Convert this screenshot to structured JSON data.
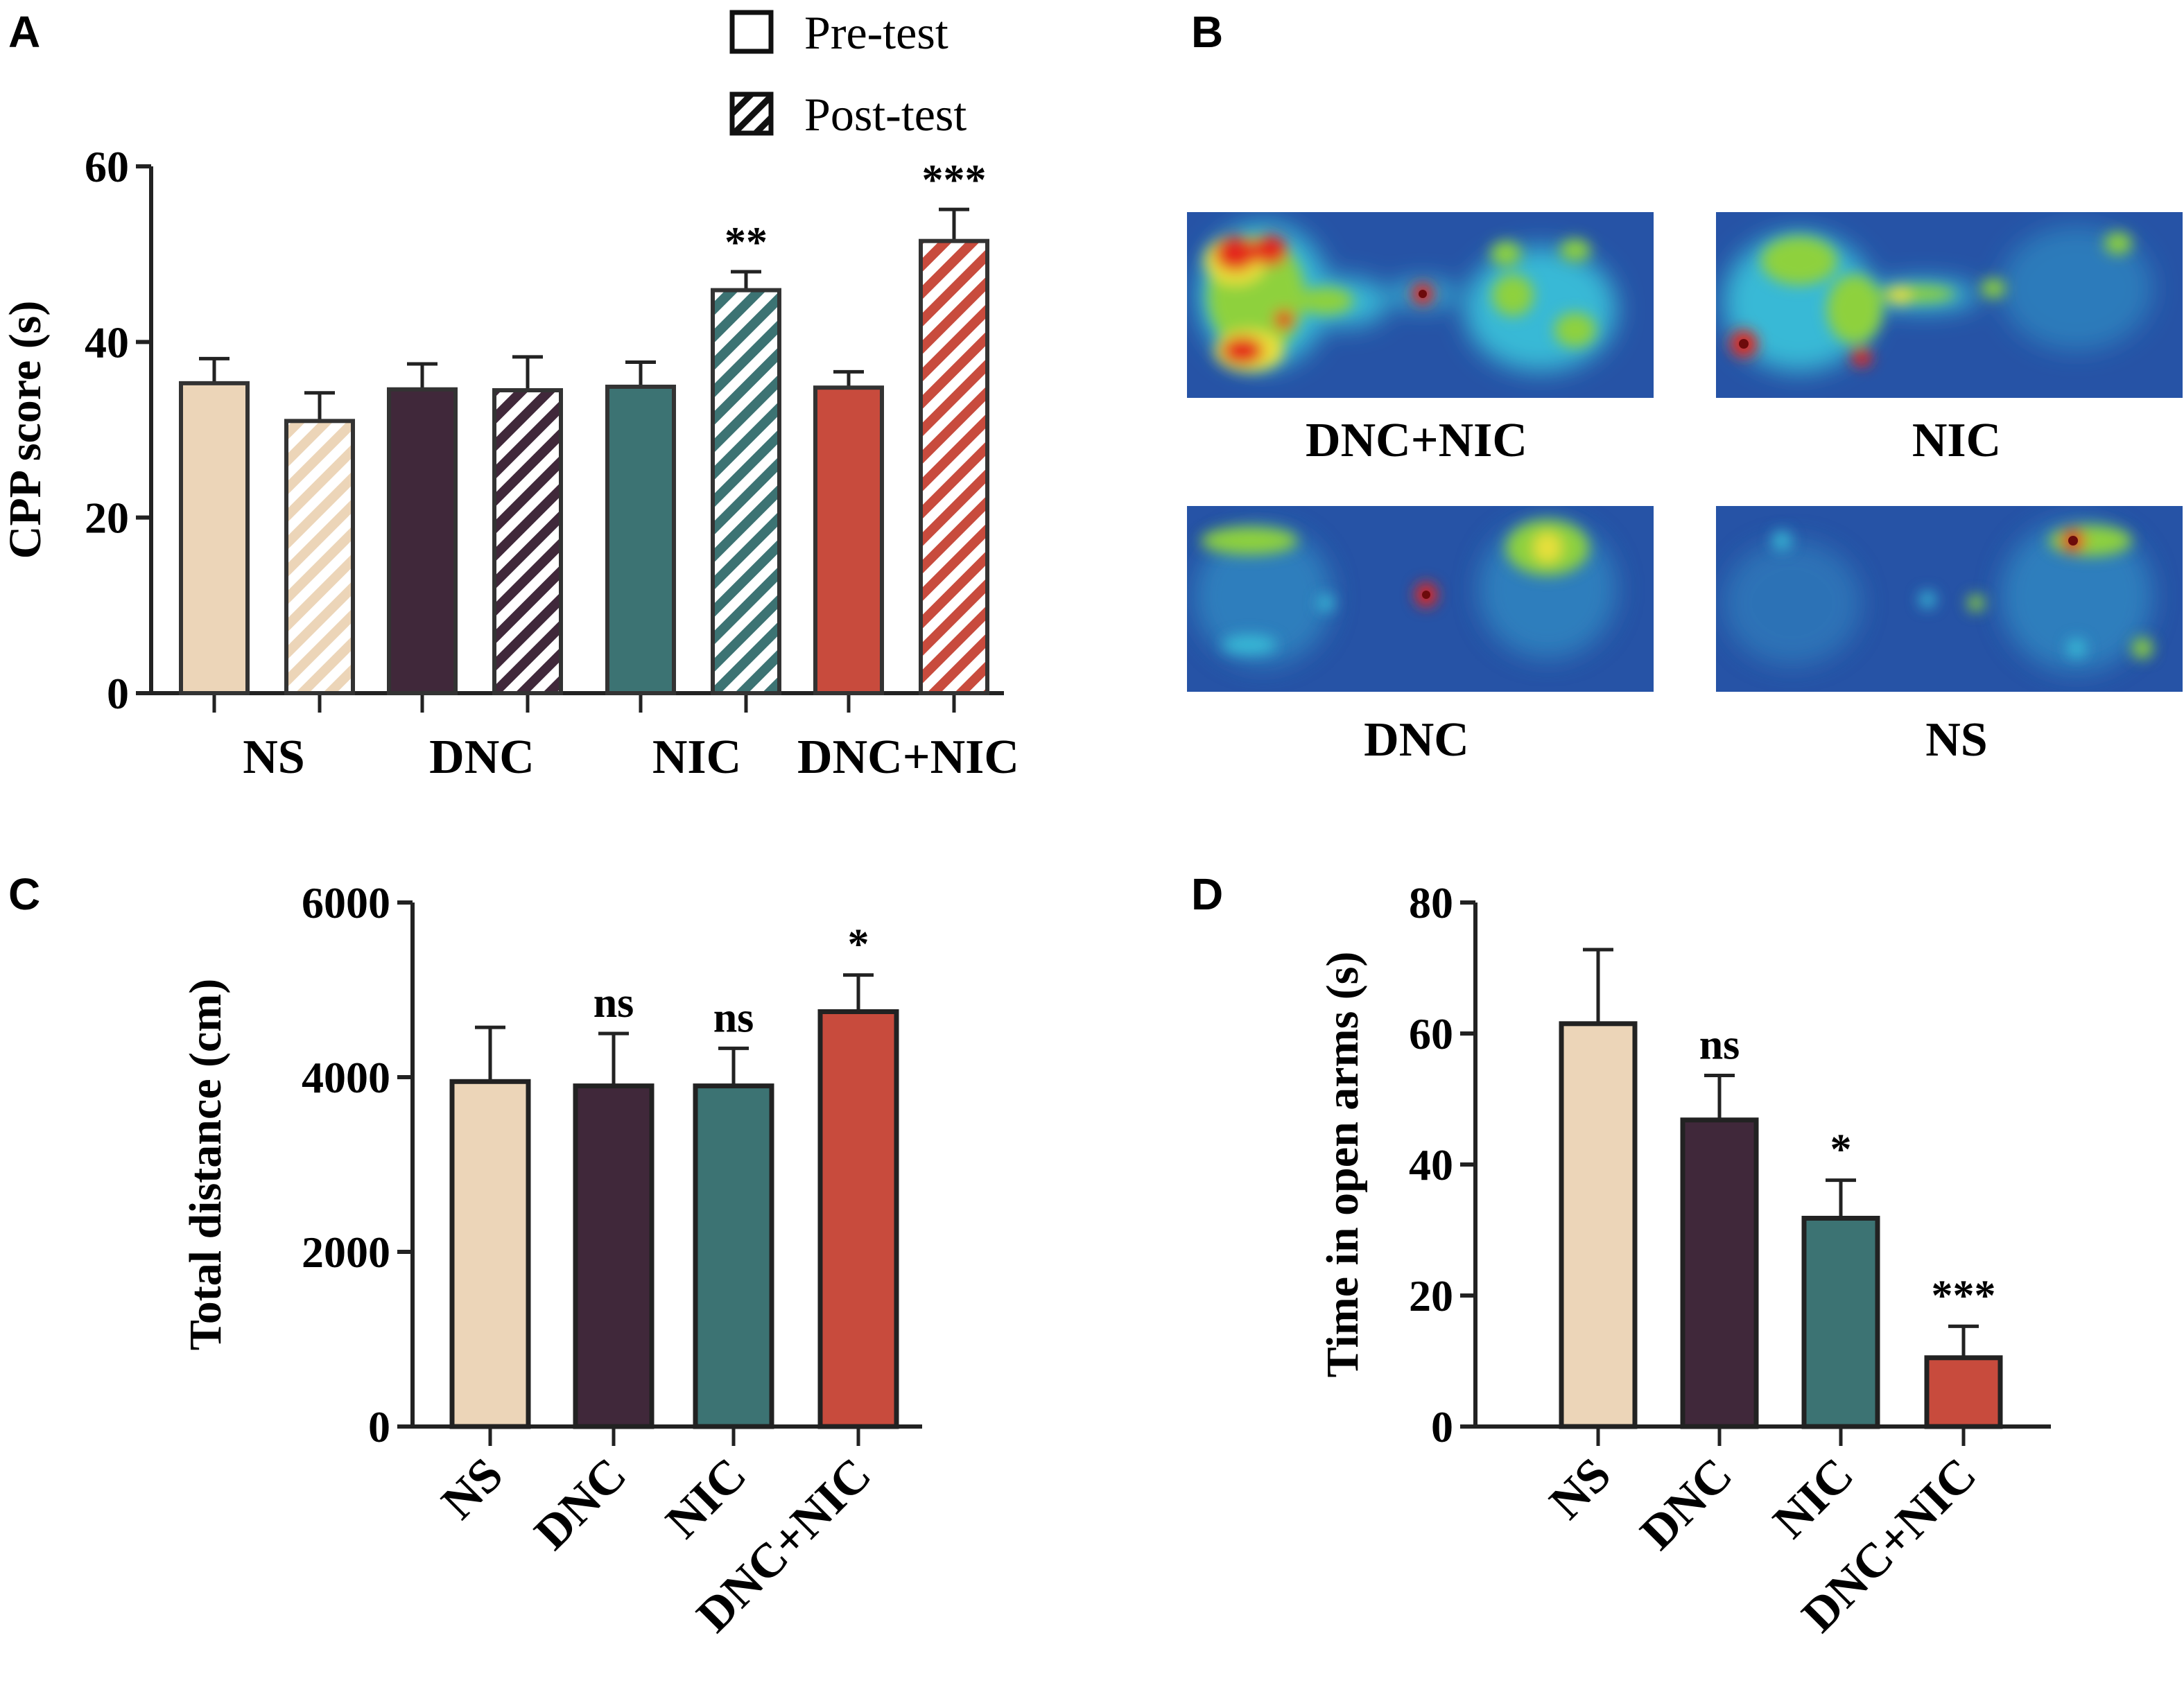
{
  "panel_letters": {
    "a": "A",
    "b": "B",
    "c": "C",
    "d": "D"
  },
  "colors": {
    "NS": "#ecd5b8",
    "DNC": "#40283a",
    "NIC": "#3c7373",
    "DNC+NIC": "#c84b3d",
    "heat_bg": "#2653a6"
  },
  "chart_data": [
    {
      "id": "A",
      "type": "bar",
      "ylabel": "CPP score (s)",
      "ylim": [
        0,
        60
      ],
      "yticks": [
        0,
        20,
        40,
        60
      ],
      "categories": [
        "NS",
        "DNC",
        "NIC",
        "DNC+NIC"
      ],
      "legend": [
        "Pre-test",
        "Post-test"
      ],
      "legend_position": "top-right",
      "series": [
        {
          "name": "Pre-test",
          "pattern": "solid",
          "values": [
            35.3,
            34.6,
            34.9,
            34.8
          ],
          "errors": [
            2.8,
            2.9,
            2.8,
            1.8
          ]
        },
        {
          "name": "Post-test",
          "pattern": "hatched",
          "values": [
            31.0,
            34.5,
            45.9,
            51.5
          ],
          "errors": [
            3.2,
            3.8,
            2.1,
            3.6
          ]
        }
      ],
      "annotations": [
        {
          "category": "NIC",
          "series": "Post-test",
          "text": "**"
        },
        {
          "category": "DNC+NIC",
          "series": "Post-test",
          "text": "***"
        }
      ]
    },
    {
      "id": "C",
      "type": "bar",
      "ylabel": "Total distance (cm)",
      "ylim": [
        0,
        6000
      ],
      "yticks": [
        0,
        2000,
        4000,
        6000
      ],
      "categories": [
        "NS",
        "DNC",
        "NIC",
        "DNC+NIC"
      ],
      "values": [
        3950,
        3900,
        3900,
        4750
      ],
      "errors": [
        620,
        600,
        430,
        420
      ],
      "annotations": [
        "",
        "ns",
        "ns",
        "*"
      ]
    },
    {
      "id": "D",
      "type": "bar",
      "ylabel": "Time in open arms (s)",
      "ylim": [
        0,
        80
      ],
      "yticks": [
        0,
        20,
        40,
        60,
        80
      ],
      "categories": [
        "NS",
        "DNC",
        "NIC",
        "DNC+NIC"
      ],
      "values": [
        61.5,
        46.8,
        31.8,
        10.5
      ],
      "errors": [
        11.3,
        6.8,
        5.8,
        4.8
      ],
      "annotations": [
        "",
        "ns",
        "*",
        "***"
      ]
    }
  ],
  "heatmaps": {
    "id": "B",
    "labels": [
      "DNC+NIC",
      "NIC",
      "DNC",
      "NS"
    ]
  }
}
